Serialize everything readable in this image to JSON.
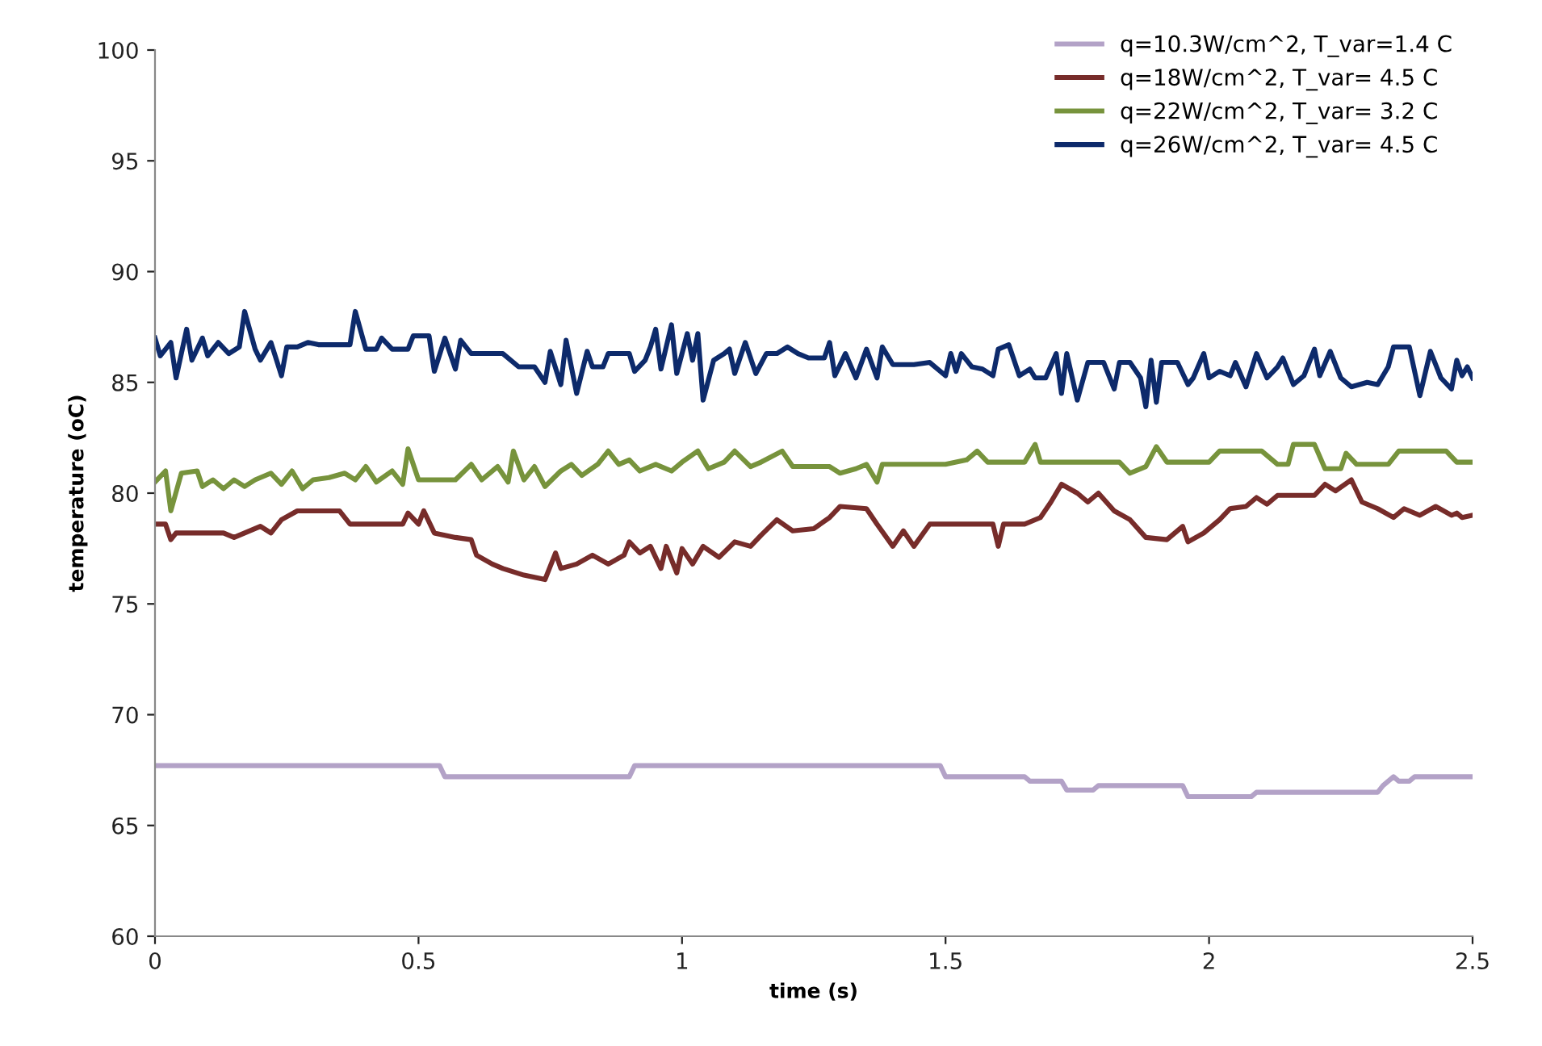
{
  "chart_data": {
    "type": "line",
    "xlabel": "time (s)",
    "ylabel": "temperature (oC)",
    "xlim": [
      0,
      2.5
    ],
    "ylim": [
      60,
      100
    ],
    "xticks": [
      0,
      0.5,
      1,
      1.5,
      2,
      2.5
    ],
    "yticks": [
      60,
      65,
      70,
      75,
      80,
      85,
      90,
      95,
      100
    ],
    "grid": false,
    "legend": "top right",
    "marker": "none",
    "line_style": "solid",
    "series": [
      {
        "name": "q=10.3W/cm^2, T_var=1.4 C",
        "color": "#b3a2c7",
        "x": [
          0,
          0.54,
          0.55,
          0.9,
          0.91,
          1.49,
          1.5,
          1.65,
          1.66,
          1.72,
          1.73,
          1.78,
          1.79,
          1.95,
          1.96,
          2.08,
          2.09,
          2.32,
          2.33,
          2.35,
          2.36,
          2.38,
          2.39,
          2.5
        ],
        "values": [
          67.7,
          67.7,
          67.2,
          67.2,
          67.7,
          67.7,
          67.2,
          67.2,
          67.0,
          67.0,
          66.6,
          66.6,
          66.8,
          66.8,
          66.3,
          66.3,
          66.5,
          66.5,
          66.8,
          67.2,
          67.0,
          67.0,
          67.2,
          67.2
        ]
      },
      {
        "name": "q=18W/cm^2, T_var= 4.5 C",
        "color": "#772c2a",
        "x": [
          0,
          0.02,
          0.03,
          0.04,
          0.13,
          0.15,
          0.2,
          0.22,
          0.24,
          0.27,
          0.35,
          0.37,
          0.47,
          0.48,
          0.5,
          0.51,
          0.53,
          0.57,
          0.6,
          0.61,
          0.64,
          0.66,
          0.7,
          0.74,
          0.76,
          0.77,
          0.8,
          0.83,
          0.86,
          0.89,
          0.9,
          0.92,
          0.94,
          0.96,
          0.97,
          0.99,
          1.0,
          1.02,
          1.04,
          1.07,
          1.1,
          1.13,
          1.15,
          1.18,
          1.21,
          1.25,
          1.28,
          1.3,
          1.35,
          1.37,
          1.4,
          1.42,
          1.44,
          1.47,
          1.59,
          1.6,
          1.61,
          1.65,
          1.68,
          1.7,
          1.72,
          1.75,
          1.77,
          1.79,
          1.82,
          1.85,
          1.88,
          1.92,
          1.95,
          1.96,
          1.99,
          2.02,
          2.04,
          2.07,
          2.09,
          2.11,
          2.13,
          2.2,
          2.22,
          2.24,
          2.27,
          2.29,
          2.32,
          2.35,
          2.37,
          2.4,
          2.43,
          2.46,
          2.47,
          2.48,
          2.5
        ],
        "values": [
          78.6,
          78.6,
          77.9,
          78.2,
          78.2,
          78.0,
          78.5,
          78.2,
          78.8,
          79.2,
          79.2,
          78.6,
          78.6,
          79.1,
          78.6,
          79.2,
          78.2,
          78.0,
          77.9,
          77.2,
          76.8,
          76.6,
          76.3,
          76.1,
          77.3,
          76.6,
          76.8,
          77.2,
          76.8,
          77.2,
          77.8,
          77.3,
          77.6,
          76.6,
          77.6,
          76.4,
          77.5,
          76.8,
          77.6,
          77.1,
          77.8,
          77.6,
          78.1,
          78.8,
          78.3,
          78.4,
          78.9,
          79.4,
          79.3,
          78.6,
          77.6,
          78.3,
          77.6,
          78.6,
          78.6,
          77.6,
          78.6,
          78.6,
          78.9,
          79.6,
          80.4,
          80.0,
          79.6,
          80.0,
          79.2,
          78.8,
          78.0,
          77.9,
          78.5,
          77.8,
          78.2,
          78.8,
          79.3,
          79.4,
          79.8,
          79.5,
          79.9,
          79.9,
          80.4,
          80.1,
          80.6,
          79.6,
          79.3,
          78.9,
          79.3,
          79.0,
          79.4,
          79.0,
          79.1,
          78.9,
          79.0
        ]
      },
      {
        "name": "q=22W/cm^2, T_var= 3.2 C",
        "color": "#77933c",
        "x": [
          0,
          0.02,
          0.03,
          0.05,
          0.08,
          0.09,
          0.11,
          0.13,
          0.15,
          0.17,
          0.19,
          0.22,
          0.24,
          0.26,
          0.28,
          0.3,
          0.33,
          0.36,
          0.38,
          0.4,
          0.42,
          0.45,
          0.47,
          0.48,
          0.5,
          0.57,
          0.6,
          0.62,
          0.65,
          0.67,
          0.68,
          0.7,
          0.72,
          0.74,
          0.77,
          0.79,
          0.81,
          0.84,
          0.86,
          0.88,
          0.9,
          0.92,
          0.95,
          0.98,
          1.0,
          1.03,
          1.05,
          1.08,
          1.1,
          1.13,
          1.15,
          1.19,
          1.21,
          1.28,
          1.3,
          1.33,
          1.35,
          1.37,
          1.38,
          1.5,
          1.54,
          1.56,
          1.58,
          1.65,
          1.67,
          1.68,
          1.83,
          1.85,
          1.88,
          1.9,
          1.92,
          2.0,
          2.02,
          2.1,
          2.13,
          2.15,
          2.16,
          2.2,
          2.22,
          2.25,
          2.26,
          2.28,
          2.34,
          2.36,
          2.45,
          2.47,
          2.5
        ],
        "values": [
          80.5,
          81.0,
          79.2,
          80.9,
          81.0,
          80.3,
          80.6,
          80.2,
          80.6,
          80.3,
          80.6,
          80.9,
          80.4,
          81.0,
          80.2,
          80.6,
          80.7,
          80.9,
          80.6,
          81.2,
          80.5,
          81.0,
          80.4,
          82.0,
          80.6,
          80.6,
          81.3,
          80.6,
          81.2,
          80.5,
          81.9,
          80.6,
          81.2,
          80.3,
          81.0,
          81.3,
          80.8,
          81.3,
          81.9,
          81.3,
          81.5,
          81.0,
          81.3,
          81.0,
          81.4,
          81.9,
          81.1,
          81.4,
          81.9,
          81.2,
          81.4,
          81.9,
          81.2,
          81.2,
          80.9,
          81.1,
          81.3,
          80.5,
          81.3,
          81.3,
          81.5,
          81.9,
          81.4,
          81.4,
          82.2,
          81.4,
          81.4,
          80.9,
          81.2,
          82.1,
          81.4,
          81.4,
          81.9,
          81.9,
          81.3,
          81.3,
          82.2,
          82.2,
          81.1,
          81.1,
          81.8,
          81.3,
          81.3,
          81.9,
          81.9,
          81.4,
          81.4
        ]
      },
      {
        "name": "q=26W/cm^2, T_var= 4.5 C",
        "color": "#0d2a6b",
        "x": [
          0,
          0.01,
          0.03,
          0.04,
          0.06,
          0.07,
          0.09,
          0.1,
          0.12,
          0.14,
          0.16,
          0.17,
          0.19,
          0.2,
          0.22,
          0.24,
          0.25,
          0.27,
          0.29,
          0.31,
          0.37,
          0.38,
          0.4,
          0.42,
          0.43,
          0.45,
          0.48,
          0.49,
          0.52,
          0.53,
          0.55,
          0.57,
          0.58,
          0.6,
          0.66,
          0.69,
          0.72,
          0.74,
          0.75,
          0.77,
          0.78,
          0.8,
          0.82,
          0.83,
          0.85,
          0.86,
          0.9,
          0.91,
          0.93,
          0.94,
          0.95,
          0.96,
          0.98,
          0.99,
          1.01,
          1.02,
          1.03,
          1.04,
          1.06,
          1.08,
          1.09,
          1.1,
          1.12,
          1.14,
          1.16,
          1.18,
          1.2,
          1.22,
          1.24,
          1.27,
          1.28,
          1.29,
          1.31,
          1.33,
          1.35,
          1.37,
          1.38,
          1.4,
          1.44,
          1.47,
          1.5,
          1.51,
          1.52,
          1.53,
          1.55,
          1.57,
          1.59,
          1.6,
          1.62,
          1.64,
          1.66,
          1.67,
          1.69,
          1.71,
          1.72,
          1.73,
          1.75,
          1.77,
          1.8,
          1.82,
          1.83,
          1.85,
          1.87,
          1.88,
          1.89,
          1.9,
          1.91,
          1.94,
          1.96,
          1.97,
          1.99,
          2.0,
          2.02,
          2.04,
          2.05,
          2.07,
          2.09,
          2.11,
          2.13,
          2.14,
          2.16,
          2.18,
          2.2,
          2.21,
          2.23,
          2.25,
          2.27,
          2.3,
          2.32,
          2.34,
          2.35,
          2.38,
          2.4,
          2.42,
          2.44,
          2.46,
          2.47,
          2.48,
          2.49,
          2.5
        ],
        "values": [
          87.0,
          86.2,
          86.8,
          85.2,
          87.4,
          86.0,
          87.0,
          86.2,
          86.8,
          86.3,
          86.6,
          88.2,
          86.5,
          86.0,
          86.8,
          85.3,
          86.6,
          86.6,
          86.8,
          86.7,
          86.7,
          88.2,
          86.5,
          86.5,
          87.0,
          86.5,
          86.5,
          87.1,
          87.1,
          85.5,
          87.0,
          85.6,
          86.9,
          86.3,
          86.3,
          85.7,
          85.7,
          85.0,
          86.4,
          84.9,
          86.9,
          84.5,
          86.4,
          85.7,
          85.7,
          86.3,
          86.3,
          85.5,
          86.0,
          86.6,
          87.4,
          85.6,
          87.6,
          85.4,
          87.2,
          86.0,
          87.2,
          84.2,
          86.0,
          86.3,
          86.5,
          85.4,
          86.8,
          85.4,
          86.3,
          86.3,
          86.6,
          86.3,
          86.1,
          86.1,
          86.8,
          85.3,
          86.3,
          85.2,
          86.5,
          85.2,
          86.6,
          85.8,
          85.8,
          85.9,
          85.3,
          86.3,
          85.5,
          86.3,
          85.7,
          85.6,
          85.3,
          86.5,
          86.7,
          85.3,
          85.6,
          85.2,
          85.2,
          86.3,
          84.5,
          86.3,
          84.2,
          85.9,
          85.9,
          84.7,
          85.9,
          85.9,
          85.2,
          83.9,
          86.0,
          84.1,
          85.9,
          85.9,
          84.9,
          85.2,
          86.3,
          85.2,
          85.5,
          85.3,
          85.9,
          84.8,
          86.3,
          85.2,
          85.7,
          86.1,
          84.9,
          85.3,
          86.5,
          85.3,
          86.4,
          85.2,
          84.8,
          85.0,
          84.9,
          85.7,
          86.6,
          86.6,
          84.4,
          86.4,
          85.2,
          84.7,
          86.0,
          85.3,
          85.7,
          85.2
        ]
      }
    ]
  }
}
